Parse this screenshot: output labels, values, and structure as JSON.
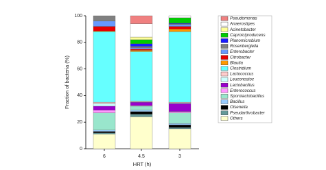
{
  "chart_data": {
    "type": "stacked_bar",
    "x_label": "HRT (h)",
    "y_label": "Fraction of bacteria (%)",
    "categories": [
      "6",
      "4.5",
      "3"
    ],
    "ylim": [
      0,
      100
    ],
    "yticks": [
      0,
      20,
      40,
      60,
      80,
      100
    ],
    "series": [
      {
        "name": "Pseudomonas",
        "color": "#f08080",
        "values": [
          0,
          6,
          0
        ]
      },
      {
        "name": "Anaerostipes",
        "color": "#ffffff",
        "values": [
          0,
          10,
          1.5
        ]
      },
      {
        "name": "Acinetobacter",
        "color": "#ffff99",
        "values": [
          0,
          2,
          0
        ]
      },
      {
        "name": "Caproiciproducens",
        "color": "#00cc00",
        "values": [
          0,
          3,
          4
        ]
      },
      {
        "name": "Planomicrobium",
        "color": "#1a1aff",
        "values": [
          0,
          2,
          0.5
        ]
      },
      {
        "name": "Rosenbergiella",
        "color": "#808080",
        "values": [
          4,
          1,
          0.5
        ]
      },
      {
        "name": "Enterobacter",
        "color": "#6699ff",
        "values": [
          4,
          1,
          1.5
        ]
      },
      {
        "name": "Citrobacter",
        "color": "#e60000",
        "values": [
          3.5,
          1,
          2
        ]
      },
      {
        "name": "Blautia",
        "color": "#ff9900",
        "values": [
          0.5,
          1,
          2
        ]
      },
      {
        "name": "Clostridium",
        "color": "#66ffff",
        "values": [
          53,
          37,
          53
        ]
      },
      {
        "name": "Lactococcus",
        "color": "#ffcccc",
        "values": [
          1,
          0.5,
          0.5
        ]
      },
      {
        "name": "Leuconostoc",
        "color": "#ccffff",
        "values": [
          2,
          0.5,
          0.5
        ]
      },
      {
        "name": "Lactobacillus",
        "color": "#9900cc",
        "values": [
          3,
          2.5,
          6
        ]
      },
      {
        "name": "Enterococcus",
        "color": "#ff99ff",
        "values": [
          2,
          0.5,
          1
        ]
      },
      {
        "name": "Sporolactobacillus",
        "color": "#99e6cc",
        "values": [
          13,
          3,
          8
        ]
      },
      {
        "name": "Bacillus",
        "color": "#99ccff",
        "values": [
          1,
          1,
          1
        ]
      },
      {
        "name": "Olsenella",
        "color": "#000000",
        "values": [
          1,
          2,
          2
        ]
      },
      {
        "name": "Pseudarthrobacter",
        "color": "#669999",
        "values": [
          1,
          2,
          1
        ]
      },
      {
        "name": "Others",
        "color": "#ffffcc",
        "values": [
          11,
          24,
          15
        ]
      }
    ]
  }
}
